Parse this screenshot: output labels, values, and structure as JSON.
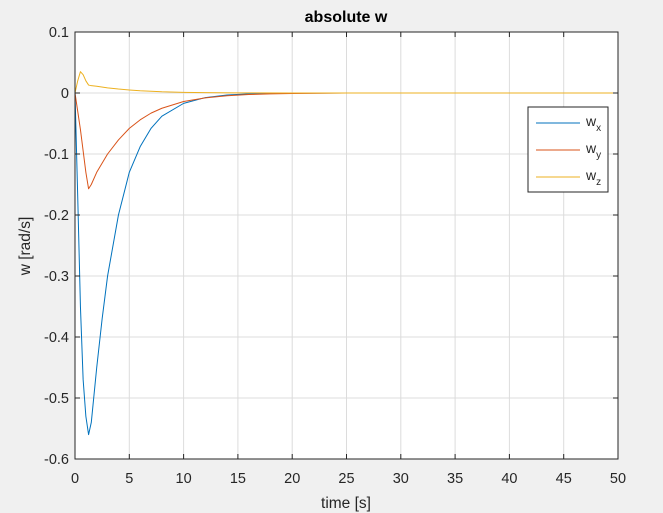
{
  "chart_data": {
    "type": "line",
    "title": "absolute w",
    "xlabel": "time [s]",
    "ylabel": "w [rad/s]",
    "xlim": [
      0,
      50
    ],
    "ylim": [
      -0.6,
      0.1
    ],
    "xticks": [
      0,
      5,
      10,
      15,
      20,
      25,
      30,
      35,
      40,
      45,
      50
    ],
    "yticks": [
      0.1,
      0,
      -0.1,
      -0.2,
      -0.3,
      -0.4,
      -0.5,
      -0.6
    ],
    "grid": true,
    "legend": {
      "position": "top-right"
    },
    "series": [
      {
        "name": "w_x",
        "label_base": "w",
        "label_sub": "x",
        "color": "#0072BD",
        "x": [
          0,
          0.25,
          0.5,
          0.75,
          1.0,
          1.25,
          1.5,
          2,
          2.5,
          3,
          4,
          5,
          6,
          7,
          8,
          10,
          12,
          14,
          16,
          18,
          20,
          25,
          30,
          40,
          50
        ],
        "y": [
          0,
          -0.17,
          -0.35,
          -0.47,
          -0.53,
          -0.56,
          -0.54,
          -0.45,
          -0.37,
          -0.3,
          -0.2,
          -0.13,
          -0.088,
          -0.058,
          -0.038,
          -0.017,
          -0.0075,
          -0.0033,
          -0.0015,
          -0.0007,
          -0.0003,
          0,
          0,
          0,
          0
        ]
      },
      {
        "name": "w_y",
        "label_base": "w",
        "label_sub": "y",
        "color": "#D95319",
        "x": [
          0,
          0.5,
          1.0,
          1.25,
          1.5,
          2,
          3,
          4,
          5,
          6,
          7,
          8,
          10,
          12,
          14,
          16,
          18,
          20,
          25,
          30,
          40,
          50
        ],
        "y": [
          0,
          -0.06,
          -0.13,
          -0.157,
          -0.15,
          -0.13,
          -0.1,
          -0.077,
          -0.058,
          -0.044,
          -0.033,
          -0.025,
          -0.014,
          -0.008,
          -0.0045,
          -0.0025,
          -0.0014,
          -0.0008,
          0,
          0,
          0,
          0
        ]
      },
      {
        "name": "w_z",
        "label_base": "w",
        "label_sub": "z",
        "color": "#EDB120",
        "x": [
          0,
          0.25,
          0.5,
          0.75,
          1.0,
          1.25,
          1.5,
          2,
          3,
          4,
          5,
          6,
          8,
          10,
          12,
          15,
          20,
          25,
          30,
          40,
          50
        ],
        "y": [
          0,
          0.02,
          0.035,
          0.03,
          0.02,
          0.013,
          0.012,
          0.011,
          0.0085,
          0.0065,
          0.005,
          0.0037,
          0.002,
          0.0011,
          0.0006,
          0.0002,
          0,
          0,
          0,
          0,
          0
        ]
      }
    ]
  }
}
